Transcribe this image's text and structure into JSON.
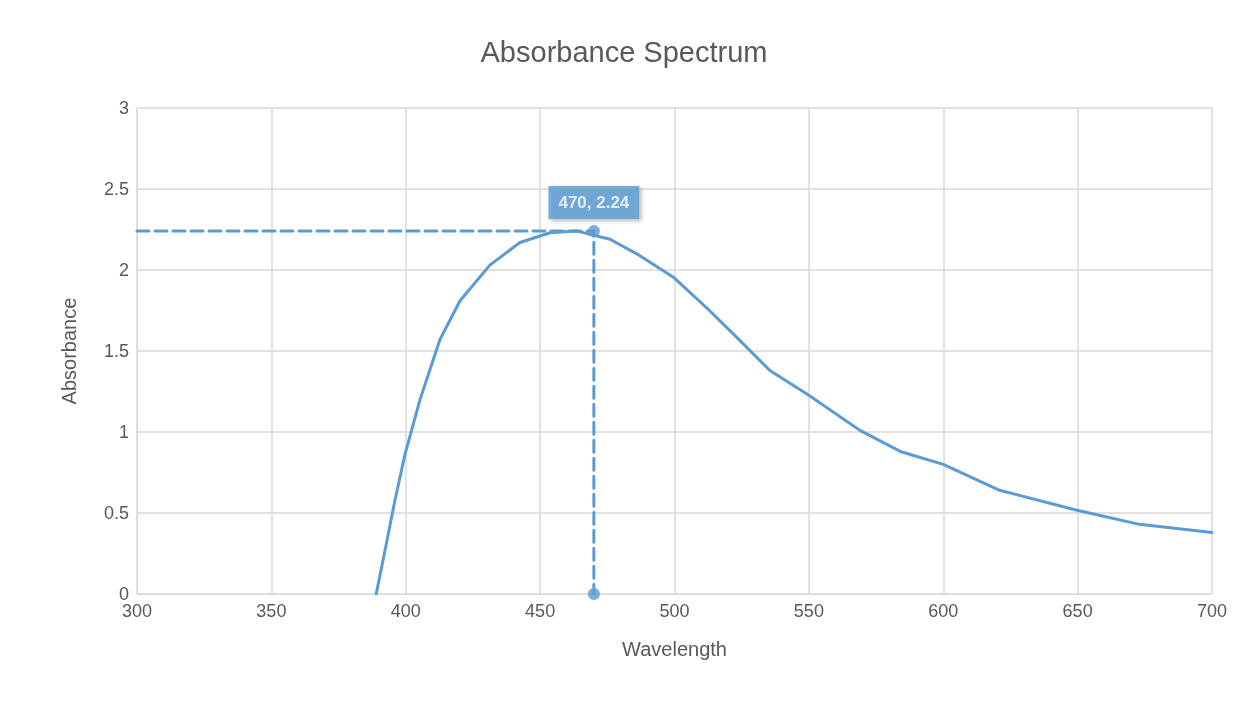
{
  "chart_data": {
    "type": "line",
    "title": "Absorbance Spectrum",
    "xlabel": "Wavelength",
    "ylabel": "Absorbance",
    "xlim": [
      300,
      700
    ],
    "xticks": [
      300,
      350,
      400,
      450,
      500,
      550,
      600,
      650,
      700
    ],
    "ylim": [
      0,
      3
    ],
    "yticks": [
      0,
      0.5,
      1,
      1.5,
      2,
      2.5,
      3
    ],
    "grid": true,
    "series": [
      {
        "color": "#5b9bd5",
        "marker": "none",
        "line_style": "solid",
        "x": [
          389,
          392.3,
          396,
          399.7,
          405.3,
          412.7,
          420.2,
          431.3,
          442.5,
          453.7,
          463.7,
          476,
          487,
          500,
          513,
          524,
          535.5,
          549.7,
          569,
          584,
          600,
          621,
          649,
          673,
          700
        ],
        "values": [
          0,
          0.27,
          0.58,
          0.86,
          1.2,
          1.57,
          1.81,
          2.03,
          2.17,
          2.23,
          2.24,
          2.19,
          2.09,
          1.95,
          1.75,
          1.57,
          1.38,
          1.23,
          1.01,
          0.88,
          0.8,
          0.64,
          0.52,
          0.43,
          0.38
        ]
      },
      {
        "color": "#5b9bd5",
        "marker": "none",
        "line_style": "dashed",
        "x": [
          300,
          470,
          470
        ],
        "values": [
          2.24,
          2.24,
          0
        ]
      },
      {
        "type": "scatter",
        "color": "#5b9bd5",
        "marker": "circle",
        "x": [
          470,
          470
        ],
        "values": [
          2.24,
          0
        ],
        "value_labels": [
          "470, 2.24",
          null
        ]
      }
    ]
  }
}
